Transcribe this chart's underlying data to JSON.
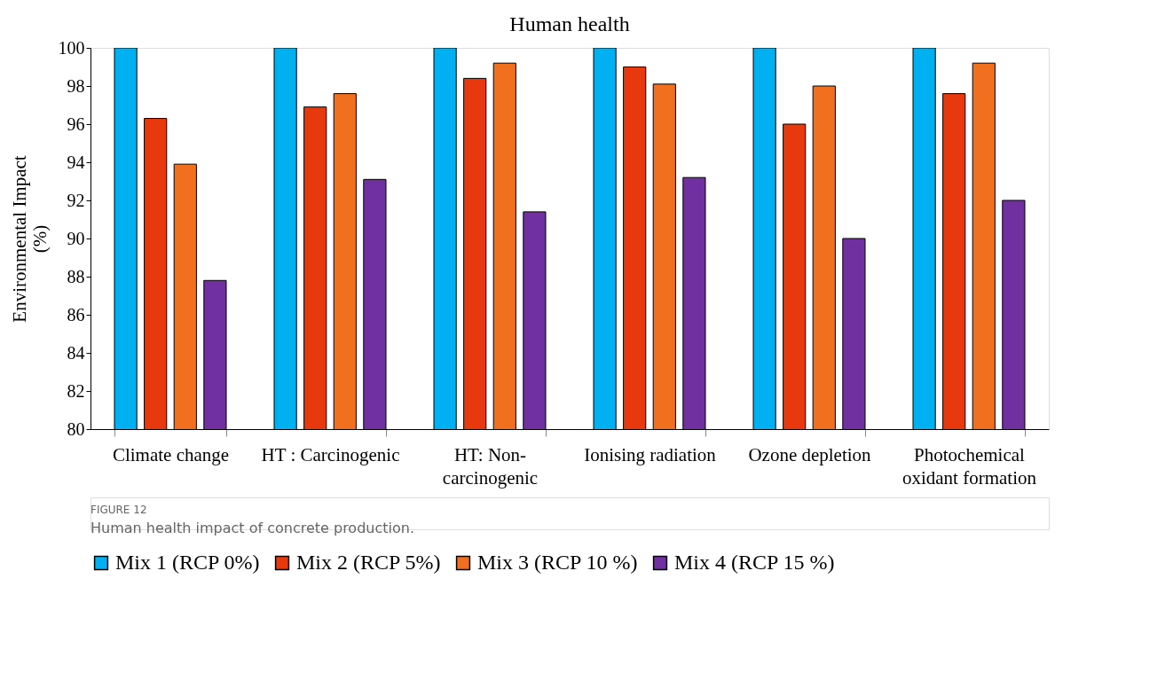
{
  "chart_data": {
    "type": "bar",
    "title": "Human health",
    "ylabel": "Environmental Impact\n(%)",
    "categories": [
      "Climate change",
      "HT : Carcinogenic",
      "HT: Non-\ncarcinogenic",
      "Ionising radiation",
      "Ozone depletion",
      "Photochemical\noxidant formation"
    ],
    "series": [
      {
        "name": "Mix 1 (RCP 0%)",
        "color": "#00b0f0",
        "values": [
          100,
          100,
          100,
          100,
          100,
          100
        ]
      },
      {
        "name": "Mix 2 (RCP 5%)",
        "color": "#e8380d",
        "values": [
          96.3,
          96.9,
          98.4,
          99.0,
          96.0,
          97.6
        ]
      },
      {
        "name": "Mix 3 (RCP 10 %)",
        "color": "#f07020",
        "values": [
          93.9,
          97.6,
          99.2,
          98.1,
          98.0,
          99.2
        ]
      },
      {
        "name": "Mix 4 (RCP 15 %)",
        "color": "#7030a0",
        "values": [
          87.8,
          93.1,
          91.4,
          93.2,
          90.0,
          92.0
        ]
      }
    ],
    "ylim": [
      80,
      100
    ],
    "yticks": [
      80,
      82,
      84,
      86,
      88,
      90,
      92,
      94,
      96,
      98,
      100
    ],
    "grid": false,
    "legend": "bottom",
    "annotations": [
      "FIGURE 12",
      "Human health impact of concrete production."
    ]
  }
}
